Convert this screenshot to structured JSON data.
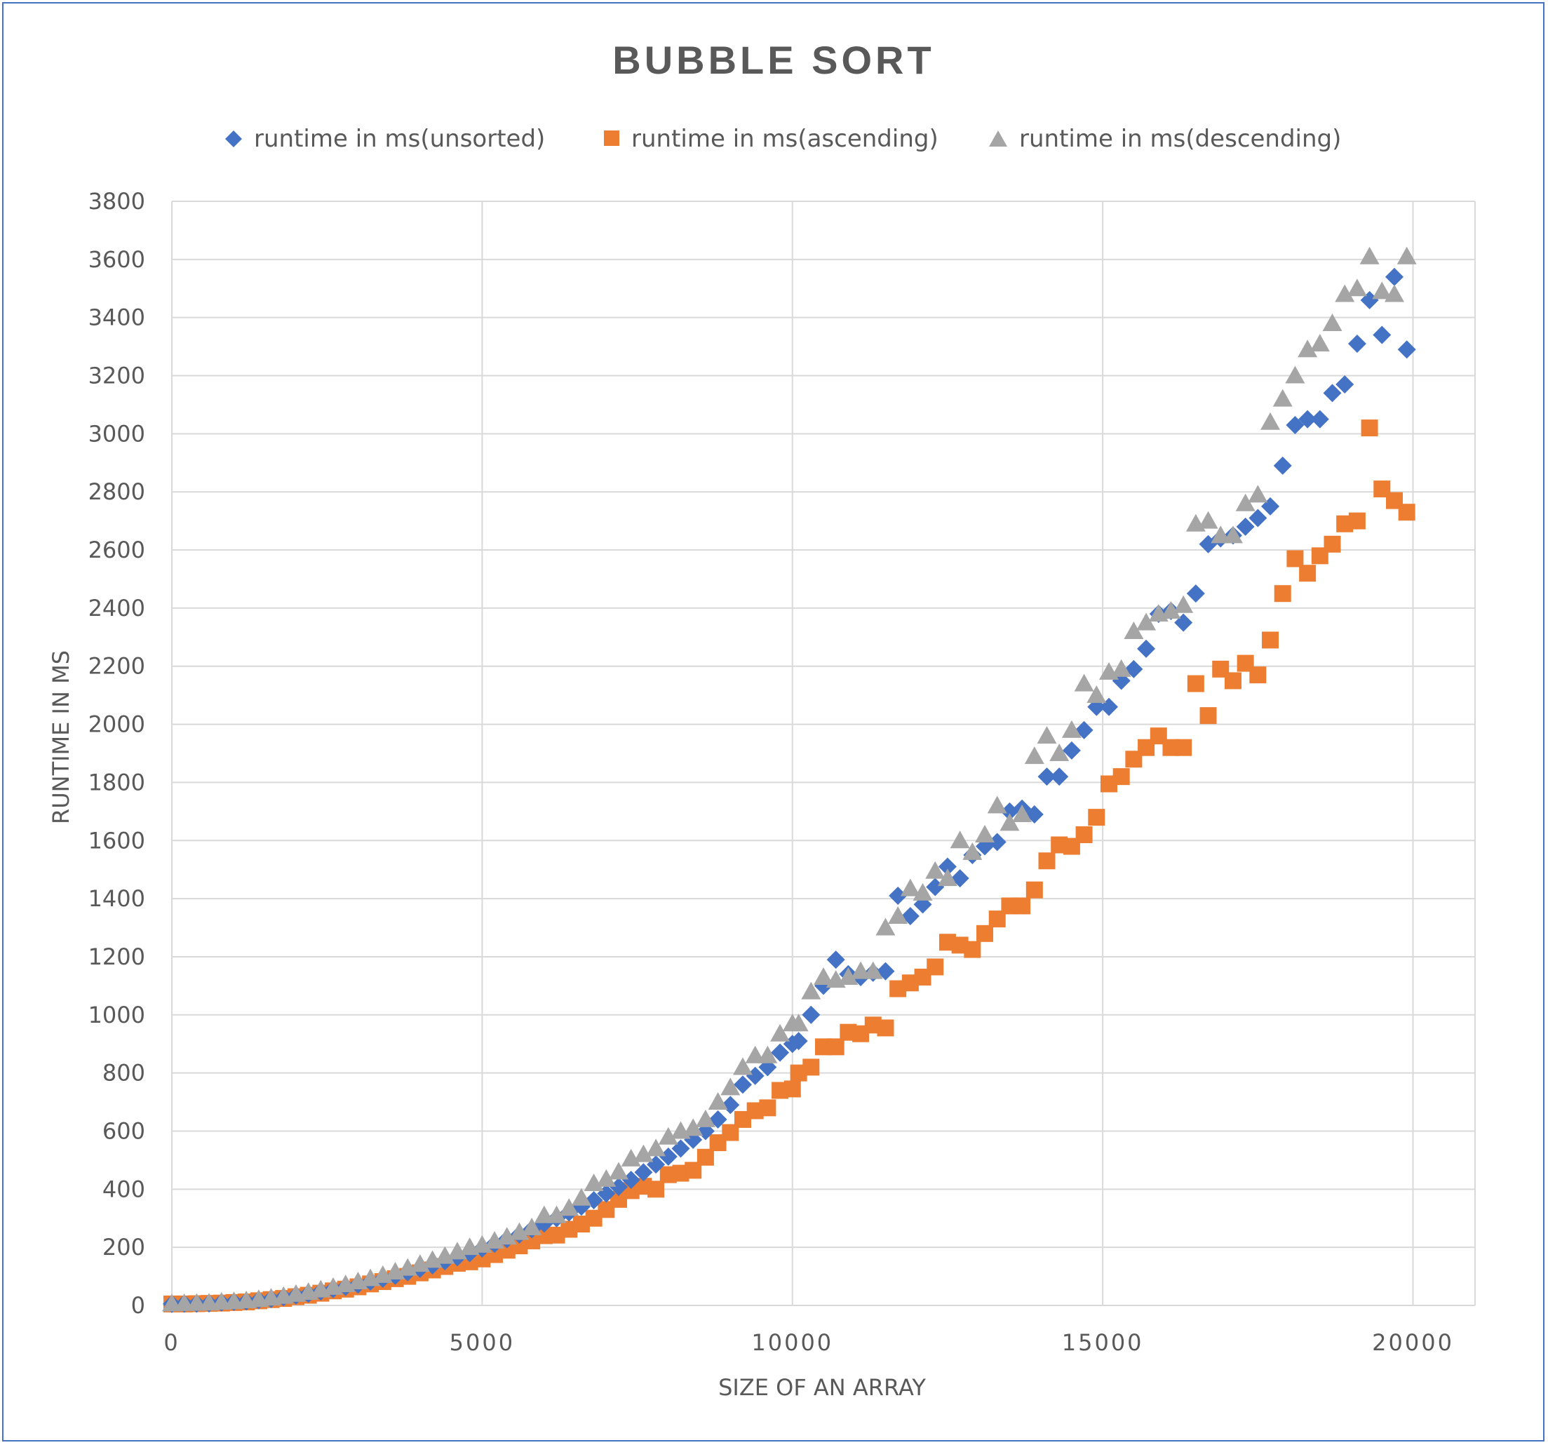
{
  "chart_data": {
    "type": "scatter",
    "title": "BUBBLE SORT",
    "xlabel": "SIZE OF AN ARRAY",
    "ylabel": "RUNTIME IN MS",
    "xlim": [
      0,
      21000
    ],
    "ylim": [
      0,
      3800
    ],
    "x_ticks": [
      "0",
      "5000",
      "10000",
      "15000",
      "20000"
    ],
    "y_ticks": [
      "0",
      "200",
      "400",
      "600",
      "800",
      "1000",
      "1200",
      "1400",
      "1600",
      "1800",
      "2000",
      "2200",
      "2400",
      "2600",
      "2800",
      "3000",
      "3200",
      "3400",
      "3600",
      "3800"
    ],
    "grid": true,
    "legend_position": "top",
    "series": [
      {
        "name": "runtime in ms(unsorted)",
        "marker": "diamond",
        "color": "#4472C4",
        "points": [
          [
            0,
            5
          ],
          [
            200,
            6
          ],
          [
            400,
            6
          ],
          [
            600,
            7
          ],
          [
            800,
            10
          ],
          [
            1000,
            12
          ],
          [
            1200,
            14
          ],
          [
            1400,
            18
          ],
          [
            1600,
            22
          ],
          [
            1800,
            28
          ],
          [
            2000,
            34
          ],
          [
            2200,
            40
          ],
          [
            2400,
            48
          ],
          [
            2600,
            56
          ],
          [
            2800,
            64
          ],
          [
            3000,
            72
          ],
          [
            3200,
            82
          ],
          [
            3400,
            92
          ],
          [
            3600,
            102
          ],
          [
            3800,
            114
          ],
          [
            4000,
            126
          ],
          [
            4200,
            138
          ],
          [
            4400,
            152
          ],
          [
            4600,
            166
          ],
          [
            4800,
            180
          ],
          [
            5000,
            196
          ],
          [
            5200,
            212
          ],
          [
            5400,
            228
          ],
          [
            5600,
            244
          ],
          [
            5800,
            262
          ],
          [
            6000,
            282
          ],
          [
            6200,
            300
          ],
          [
            6400,
            320
          ],
          [
            6600,
            340
          ],
          [
            6800,
            362
          ],
          [
            7000,
            385
          ],
          [
            7200,
            408
          ],
          [
            7400,
            432
          ],
          [
            7600,
            458
          ],
          [
            7800,
            485
          ],
          [
            8000,
            512
          ],
          [
            8200,
            540
          ],
          [
            8400,
            570
          ],
          [
            8600,
            600
          ],
          [
            8800,
            640
          ],
          [
            9000,
            690
          ],
          [
            9200,
            760
          ],
          [
            9400,
            790
          ],
          [
            9600,
            820
          ],
          [
            9800,
            870
          ],
          [
            10000,
            900
          ],
          [
            10100,
            910
          ],
          [
            10300,
            1000
          ],
          [
            10500,
            1100
          ],
          [
            10700,
            1190
          ],
          [
            10900,
            1140
          ],
          [
            11100,
            1130
          ],
          [
            11300,
            1145
          ],
          [
            11500,
            1150
          ],
          [
            11700,
            1410
          ],
          [
            11900,
            1340
          ],
          [
            12100,
            1380
          ],
          [
            12300,
            1440
          ],
          [
            12500,
            1510
          ],
          [
            12700,
            1470
          ],
          [
            12900,
            1550
          ],
          [
            13100,
            1580
          ],
          [
            13300,
            1595
          ],
          [
            13500,
            1700
          ],
          [
            13700,
            1710
          ],
          [
            13900,
            1690
          ],
          [
            14100,
            1820
          ],
          [
            14300,
            1820
          ],
          [
            14500,
            1910
          ],
          [
            14700,
            1980
          ],
          [
            14900,
            2060
          ],
          [
            15100,
            2060
          ],
          [
            15300,
            2150
          ],
          [
            15500,
            2190
          ],
          [
            15700,
            2260
          ],
          [
            15900,
            2380
          ],
          [
            16100,
            2390
          ],
          [
            16300,
            2350
          ],
          [
            16500,
            2450
          ],
          [
            16700,
            2620
          ],
          [
            16900,
            2640
          ],
          [
            17100,
            2650
          ],
          [
            17300,
            2680
          ],
          [
            17500,
            2710
          ],
          [
            17700,
            2750
          ],
          [
            17900,
            2890
          ],
          [
            18100,
            3030
          ],
          [
            18300,
            3050
          ],
          [
            18500,
            3050
          ],
          [
            18700,
            3140
          ],
          [
            18900,
            3170
          ],
          [
            19100,
            3310
          ],
          [
            19300,
            3460
          ],
          [
            19500,
            3340
          ],
          [
            19700,
            3540
          ],
          [
            19900,
            3290
          ]
        ]
      },
      {
        "name": "runtime in ms(ascending)",
        "marker": "square",
        "color": "#ED7D31",
        "points": [
          [
            0,
            5
          ],
          [
            200,
            5
          ],
          [
            400,
            6
          ],
          [
            600,
            7
          ],
          [
            800,
            8
          ],
          [
            1000,
            10
          ],
          [
            1200,
            12
          ],
          [
            1400,
            16
          ],
          [
            1600,
            20
          ],
          [
            1800,
            24
          ],
          [
            2000,
            30
          ],
          [
            2200,
            35
          ],
          [
            2400,
            42
          ],
          [
            2600,
            50
          ],
          [
            2800,
            56
          ],
          [
            3000,
            64
          ],
          [
            3200,
            74
          ],
          [
            3400,
            82
          ],
          [
            3600,
            92
          ],
          [
            3800,
            100
          ],
          [
            4000,
            112
          ],
          [
            4200,
            122
          ],
          [
            4400,
            134
          ],
          [
            4600,
            145
          ],
          [
            4800,
            150
          ],
          [
            5000,
            160
          ],
          [
            5200,
            175
          ],
          [
            5400,
            190
          ],
          [
            5600,
            205
          ],
          [
            5800,
            222
          ],
          [
            6000,
            240
          ],
          [
            6200,
            242
          ],
          [
            6400,
            262
          ],
          [
            6600,
            280
          ],
          [
            6800,
            300
          ],
          [
            7000,
            330
          ],
          [
            7200,
            365
          ],
          [
            7400,
            395
          ],
          [
            7600,
            410
          ],
          [
            7800,
            400
          ],
          [
            8000,
            450
          ],
          [
            8200,
            455
          ],
          [
            8400,
            465
          ],
          [
            8600,
            510
          ],
          [
            8800,
            560
          ],
          [
            9000,
            595
          ],
          [
            9200,
            640
          ],
          [
            9400,
            670
          ],
          [
            9600,
            680
          ],
          [
            9800,
            740
          ],
          [
            10000,
            745
          ],
          [
            10100,
            800
          ],
          [
            10300,
            820
          ],
          [
            10500,
            890
          ],
          [
            10700,
            890
          ],
          [
            10900,
            940
          ],
          [
            11100,
            935
          ],
          [
            11300,
            965
          ],
          [
            11500,
            955
          ],
          [
            11700,
            1090
          ],
          [
            11900,
            1110
          ],
          [
            12100,
            1130
          ],
          [
            12300,
            1165
          ],
          [
            12500,
            1250
          ],
          [
            12700,
            1240
          ],
          [
            12900,
            1225
          ],
          [
            13100,
            1280
          ],
          [
            13300,
            1330
          ],
          [
            13500,
            1375
          ],
          [
            13700,
            1375
          ],
          [
            13900,
            1430
          ],
          [
            14100,
            1530
          ],
          [
            14300,
            1585
          ],
          [
            14500,
            1580
          ],
          [
            14700,
            1620
          ],
          [
            14900,
            1680
          ],
          [
            15100,
            1795
          ],
          [
            15300,
            1820
          ],
          [
            15500,
            1880
          ],
          [
            15700,
            1920
          ],
          [
            15900,
            1960
          ],
          [
            16100,
            1920
          ],
          [
            16300,
            1920
          ],
          [
            16500,
            2140
          ],
          [
            16700,
            2030
          ],
          [
            16900,
            2190
          ],
          [
            17100,
            2150
          ],
          [
            17300,
            2210
          ],
          [
            17500,
            2170
          ],
          [
            17700,
            2290
          ],
          [
            17900,
            2450
          ],
          [
            18100,
            2570
          ],
          [
            18300,
            2520
          ],
          [
            18500,
            2580
          ],
          [
            18700,
            2620
          ],
          [
            18900,
            2690
          ],
          [
            19100,
            2700
          ],
          [
            19300,
            3020
          ],
          [
            19500,
            2810
          ],
          [
            19700,
            2770
          ],
          [
            19900,
            2730
          ]
        ]
      },
      {
        "name": "runtime in ms(descending)",
        "marker": "triangle",
        "color": "#A5A5A5",
        "points": [
          [
            0,
            6
          ],
          [
            200,
            7
          ],
          [
            400,
            8
          ],
          [
            600,
            9
          ],
          [
            800,
            12
          ],
          [
            1000,
            14
          ],
          [
            1200,
            17
          ],
          [
            1400,
            21
          ],
          [
            1600,
            26
          ],
          [
            1800,
            32
          ],
          [
            2000,
            39
          ],
          [
            2200,
            46
          ],
          [
            2400,
            54
          ],
          [
            2600,
            63
          ],
          [
            2800,
            72
          ],
          [
            3000,
            82
          ],
          [
            3200,
            93
          ],
          [
            3400,
            104
          ],
          [
            3600,
            116
          ],
          [
            3800,
            129
          ],
          [
            4000,
            142
          ],
          [
            4200,
            156
          ],
          [
            4400,
            170
          ],
          [
            4600,
            185
          ],
          [
            4800,
            200
          ],
          [
            5000,
            208
          ],
          [
            5200,
            222
          ],
          [
            5400,
            236
          ],
          [
            5600,
            252
          ],
          [
            5800,
            268
          ],
          [
            6000,
            310
          ],
          [
            6200,
            310
          ],
          [
            6400,
            335
          ],
          [
            6600,
            370
          ],
          [
            6800,
            420
          ],
          [
            7000,
            435
          ],
          [
            7200,
            460
          ],
          [
            7400,
            505
          ],
          [
            7600,
            520
          ],
          [
            7800,
            540
          ],
          [
            8000,
            580
          ],
          [
            8200,
            600
          ],
          [
            8400,
            610
          ],
          [
            8600,
            640
          ],
          [
            8800,
            700
          ],
          [
            9000,
            750
          ],
          [
            9200,
            820
          ],
          [
            9400,
            860
          ],
          [
            9600,
            860
          ],
          [
            9800,
            935
          ],
          [
            10000,
            970
          ],
          [
            10100,
            970
          ],
          [
            10300,
            1080
          ],
          [
            10500,
            1130
          ],
          [
            10700,
            1120
          ],
          [
            10900,
            1130
          ],
          [
            11100,
            1150
          ],
          [
            11300,
            1150
          ],
          [
            11500,
            1300
          ],
          [
            11700,
            1340
          ],
          [
            11900,
            1435
          ],
          [
            12100,
            1420
          ],
          [
            12300,
            1495
          ],
          [
            12500,
            1470
          ],
          [
            12700,
            1600
          ],
          [
            12900,
            1560
          ],
          [
            13100,
            1620
          ],
          [
            13300,
            1720
          ],
          [
            13500,
            1660
          ],
          [
            13700,
            1690
          ],
          [
            13900,
            1890
          ],
          [
            14100,
            1960
          ],
          [
            14300,
            1900
          ],
          [
            14500,
            1980
          ],
          [
            14700,
            2140
          ],
          [
            14900,
            2100
          ],
          [
            15100,
            2180
          ],
          [
            15300,
            2190
          ],
          [
            15500,
            2320
          ],
          [
            15700,
            2350
          ],
          [
            15900,
            2380
          ],
          [
            16100,
            2390
          ],
          [
            16300,
            2410
          ],
          [
            16500,
            2690
          ],
          [
            16700,
            2700
          ],
          [
            16900,
            2650
          ],
          [
            17100,
            2650
          ],
          [
            17300,
            2760
          ],
          [
            17500,
            2790
          ],
          [
            17700,
            3040
          ],
          [
            17900,
            3120
          ],
          [
            18100,
            3200
          ],
          [
            18300,
            3290
          ],
          [
            18500,
            3310
          ],
          [
            18700,
            3380
          ],
          [
            18900,
            3480
          ],
          [
            19100,
            3500
          ],
          [
            19300,
            3610
          ],
          [
            19500,
            3490
          ],
          [
            19700,
            3480
          ],
          [
            19900,
            3610
          ]
        ]
      }
    ]
  }
}
